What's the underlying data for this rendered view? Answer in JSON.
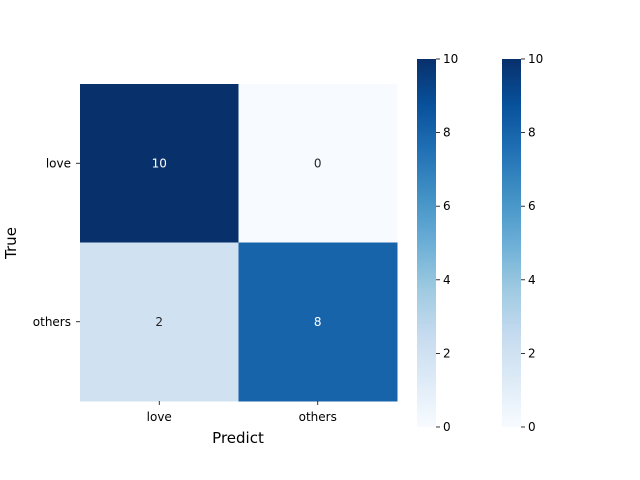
{
  "chart_data": {
    "type": "heatmap",
    "xlabel": "Predict",
    "ylabel": "True",
    "x_categories": [
      "love",
      "others"
    ],
    "y_categories": [
      "love",
      "others"
    ],
    "matrix": [
      [
        10,
        0
      ],
      [
        2,
        8
      ]
    ],
    "colormap": "Blues",
    "vmin": 0,
    "vmax": 10,
    "colorbar_ticks": [
      0,
      2,
      4,
      6,
      8,
      10
    ],
    "colorbar_count": 2,
    "grid": false
  }
}
